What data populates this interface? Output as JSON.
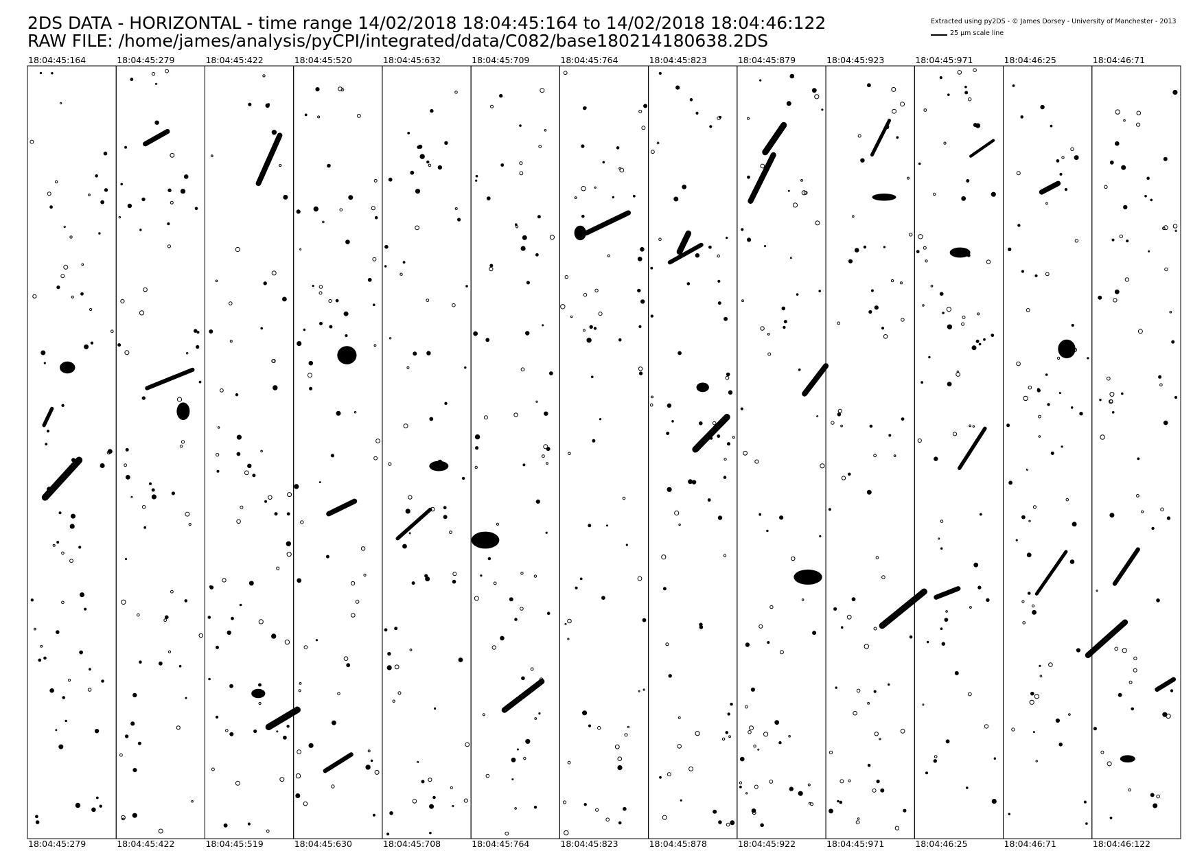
{
  "header": {
    "title_line1": "2DS DATA - HORIZONTAL - time range 14/02/2018 18:04:45:164 to 14/02/2018 18:04:46:122",
    "title_line2": "RAW FILE: /home/james/analysis/pyCPI/integrated/data/C082/base180214180638.2DS"
  },
  "credit": {
    "text": "Extracted using py2DS - © James Dorsey - University of Manchester - 2013",
    "scale_label": "25 µm scale line"
  },
  "strips": [
    {
      "start": "18:04:45:164",
      "end": "18:04:45:279"
    },
    {
      "start": "18:04:45:279",
      "end": "18:04:45:422"
    },
    {
      "start": "18:04:45:422",
      "end": "18:04:45:519"
    },
    {
      "start": "18:04:45:520",
      "end": "18:04:45:630"
    },
    {
      "start": "18:04:45:632",
      "end": "18:04:45:708"
    },
    {
      "start": "18:04:45:709",
      "end": "18:04:45:764"
    },
    {
      "start": "18:04:45:764",
      "end": "18:04:45:823"
    },
    {
      "start": "18:04:45:823",
      "end": "18:04:45:878"
    },
    {
      "start": "18:04:45:879",
      "end": "18:04:45:922"
    },
    {
      "start": "18:04:45:923",
      "end": "18:04:45:971"
    },
    {
      "start": "18:04:45:971",
      "end": "18:04:46:25"
    },
    {
      "start": "18:04:46:25",
      "end": "18:04:46:71"
    },
    {
      "start": "18:04:46:71",
      "end": "18:04:46:122"
    }
  ],
  "colors": {
    "ink": "#000000",
    "background": "#ffffff"
  }
}
